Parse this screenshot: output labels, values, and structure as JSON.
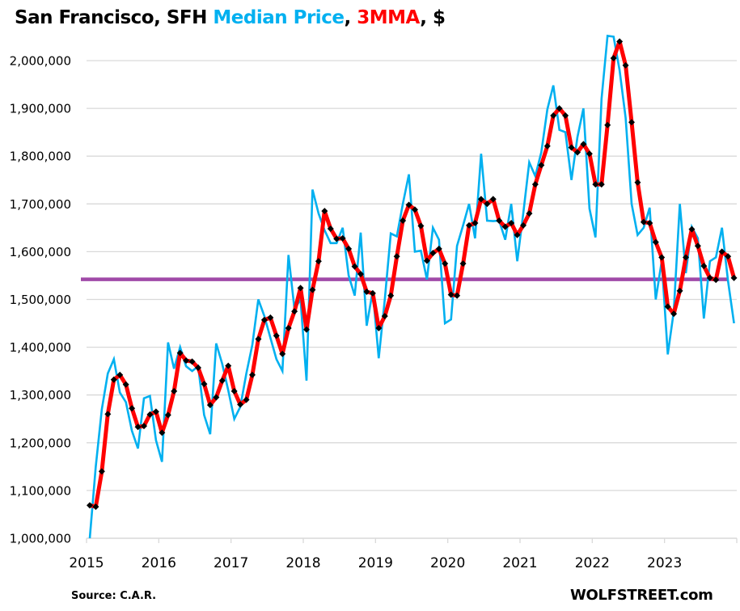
{
  "chart_data": {
    "type": "line",
    "title": {
      "part1": "San Francisco, SFH ",
      "part2": "Median Price",
      "part3": ", ",
      "part4": "3MMA",
      "part5": ", $"
    },
    "xlabel": "",
    "ylabel": "",
    "ylim": [
      1000000,
      2050000
    ],
    "y_ticks": [
      1000000,
      1100000,
      1200000,
      1300000,
      1400000,
      1500000,
      1600000,
      1700000,
      1800000,
      1900000,
      2000000
    ],
    "y_tick_labels": [
      "1,000,000",
      "1,100,000",
      "1,200,000",
      "1,300,000",
      "1,400,000",
      "1,500,000",
      "1,600,000",
      "1,700,000",
      "1,800,000",
      "1,900,000",
      "2,000,000"
    ],
    "x_tick_labels": [
      "2015",
      "2016",
      "2017",
      "2018",
      "2019",
      "2020",
      "2021",
      "2022",
      "2023"
    ],
    "x_start": "Jan 2015",
    "x_end": "Dec 2023",
    "frequency": "monthly",
    "grid": true,
    "legend": "in title",
    "colors": {
      "median": "#00b0f0",
      "mma": "#ff0000",
      "marker": "#000000",
      "reference": "#a04aa8",
      "grid": "#d9d9d9"
    },
    "reference_line": {
      "name": "Reference level",
      "value": 1542000
    },
    "series": [
      {
        "name": "Median Price",
        "values": [
          1000000,
          1150000,
          1270000,
          1345000,
          1375000,
          1305000,
          1285000,
          1225000,
          1188000,
          1293000,
          1298000,
          1205000,
          1160000,
          1410000,
          1355000,
          1400000,
          1360000,
          1350000,
          1360000,
          1258000,
          1218000,
          1408000,
          1365000,
          1310000,
          1250000,
          1275000,
          1345000,
          1405000,
          1500000,
          1465000,
          1420000,
          1375000,
          1350000,
          1593000,
          1480000,
          1500000,
          1330000,
          1730000,
          1680000,
          1645000,
          1618000,
          1618000,
          1650000,
          1550000,
          1508000,
          1640000,
          1445000,
          1518000,
          1377000,
          1500000,
          1638000,
          1632000,
          1700000,
          1762000,
          1600000,
          1602000,
          1542000,
          1650000,
          1625000,
          1450000,
          1458000,
          1612000,
          1655000,
          1700000,
          1628000,
          1805000,
          1665000,
          1664000,
          1665000,
          1625000,
          1700000,
          1580000,
          1680000,
          1787000,
          1758000,
          1808000,
          1898000,
          1948000,
          1855000,
          1850000,
          1750000,
          1840000,
          1900000,
          1690000,
          1630000,
          1920000,
          2052000,
          2050000,
          1980000,
          1880000,
          1700000,
          1635000,
          1650000,
          1692000,
          1500000,
          1580000,
          1385000,
          1475000,
          1700000,
          1555000,
          1652000,
          1628000,
          1460000,
          1580000,
          1588000,
          1650000,
          1540000,
          1450000
        ]
      },
      {
        "name": "3MMA",
        "values": [
          1069000,
          1066000,
          1140000,
          1260000,
          1332000,
          1342000,
          1322000,
          1272000,
          1233000,
          1235000,
          1259000,
          1265000,
          1221000,
          1258000,
          1308000,
          1388000,
          1372000,
          1370000,
          1357000,
          1323000,
          1279000,
          1295000,
          1330000,
          1361000,
          1308000,
          1280000,
          1290000,
          1342000,
          1417000,
          1457000,
          1462000,
          1424000,
          1386000,
          1440000,
          1475000,
          1524000,
          1437000,
          1520000,
          1580000,
          1685000,
          1648000,
          1627000,
          1628000,
          1606000,
          1569000,
          1553000,
          1516000,
          1513000,
          1440000,
          1465000,
          1508000,
          1590000,
          1665000,
          1698000,
          1688000,
          1654000,
          1581000,
          1597000,
          1606000,
          1575000,
          1510000,
          1508000,
          1575000,
          1655000,
          1660000,
          1710000,
          1700000,
          1710000,
          1665000,
          1652000,
          1660000,
          1635000,
          1655000,
          1680000,
          1741000,
          1781000,
          1821000,
          1885000,
          1900000,
          1885000,
          1818000,
          1808000,
          1825000,
          1805000,
          1741000,
          1741000,
          1865000,
          2005000,
          2040000,
          1990000,
          1871000,
          1745000,
          1662000,
          1660000,
          1620000,
          1588000,
          1485000,
          1470000,
          1518000,
          1588000,
          1647000,
          1612000,
          1570000,
          1545000,
          1541000,
          1600000,
          1590000,
          1545000
        ]
      }
    ]
  },
  "footer": {
    "source": "Source: C.A.R.",
    "brand": "WOLFSTREET.com"
  }
}
